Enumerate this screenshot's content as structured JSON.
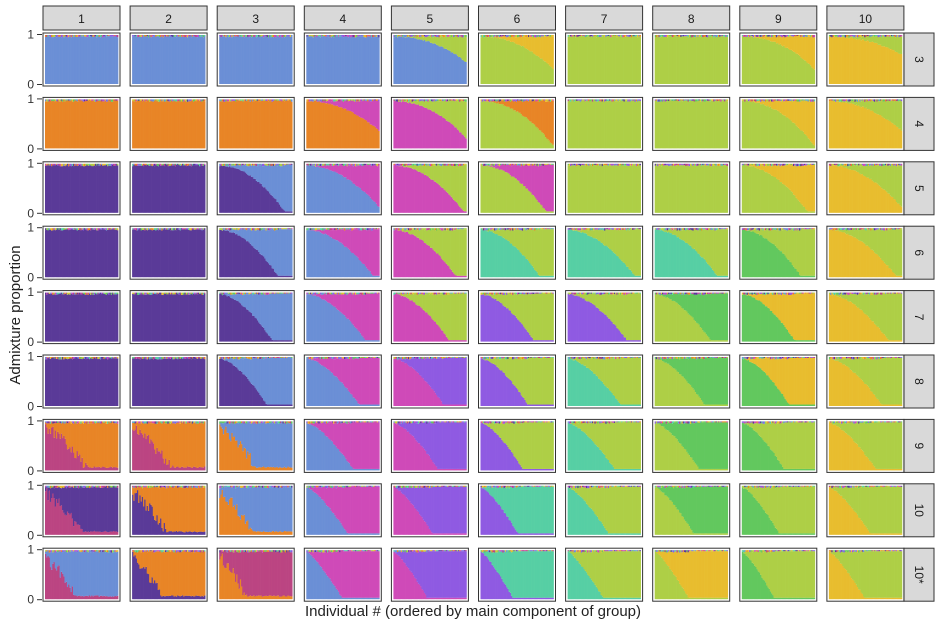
{
  "chart_data": {
    "type": "bar",
    "subtype": "stacked-admixture-facet-grid",
    "xlabel": "Individual # (ordered by main component of group)",
    "ylabel": "Admixture proportion",
    "yticks": [
      "0",
      "1"
    ],
    "ylim": [
      0,
      1
    ],
    "columns": [
      "1",
      "2",
      "3",
      "4",
      "5",
      "6",
      "7",
      "8",
      "9",
      "10"
    ],
    "rows": [
      "3",
      "4",
      "5",
      "6",
      "7",
      "8",
      "9",
      "10",
      "10*"
    ],
    "palette": {
      "blue": "#6b8fd6",
      "green": "#aecf46",
      "yellow": "#e8bd2f",
      "orange": "#e88526",
      "magenta": "#cf4ab8",
      "purple": "#5a3a98",
      "teal": "#57cfa4",
      "lime": "#62c85e",
      "violet": "#8f5ae2",
      "rose": "#bb4582"
    },
    "panels": [
      {
        "row": "3",
        "main": [
          "blue",
          "blue",
          "blue",
          "blue",
          "blue",
          "green",
          "green",
          "green",
          "green",
          "yellow"
        ],
        "minor": [
          null,
          null,
          null,
          null,
          "green",
          "yellow",
          null,
          null,
          "yellow",
          "green"
        ]
      },
      {
        "row": "4",
        "main": [
          "orange",
          "orange",
          "orange",
          "orange",
          "magenta",
          "green",
          "green",
          "green",
          "green",
          "yellow"
        ],
        "minor": [
          null,
          null,
          null,
          "magenta",
          "green",
          "orange",
          null,
          null,
          "yellow",
          "green"
        ]
      },
      {
        "row": "5",
        "main": [
          "purple",
          "purple",
          "purple",
          "blue",
          "magenta",
          "green",
          "green",
          "green",
          "green",
          "yellow"
        ],
        "minor": [
          null,
          null,
          "blue",
          "magenta",
          "green",
          "magenta",
          null,
          null,
          "yellow",
          "green"
        ]
      },
      {
        "row": "6",
        "main": [
          "purple",
          "purple",
          "purple",
          "blue",
          "magenta",
          "teal",
          "teal",
          "teal",
          "lime",
          "yellow"
        ],
        "minor": [
          null,
          null,
          "blue",
          "magenta",
          "green",
          "green",
          "green",
          "green",
          "green",
          "green"
        ]
      },
      {
        "row": "7",
        "main": [
          "purple",
          "purple",
          "purple",
          "blue",
          "magenta",
          "violet",
          "violet",
          "green",
          "lime",
          "yellow"
        ],
        "minor": [
          null,
          null,
          "blue",
          "magenta",
          "green",
          "green",
          "green",
          "lime",
          "yellow",
          "green"
        ]
      },
      {
        "row": "8",
        "main": [
          "purple",
          "purple",
          "purple",
          "blue",
          "magenta",
          "violet",
          "teal",
          "green",
          "lime",
          "yellow"
        ],
        "minor": [
          null,
          null,
          "blue",
          "magenta",
          "violet",
          "green",
          "green",
          "lime",
          "yellow",
          "green"
        ]
      },
      {
        "row": "9",
        "main": [
          "rose",
          "rose",
          "orange",
          "blue",
          "magenta",
          "violet",
          "teal",
          "green",
          "lime",
          "yellow"
        ],
        "minor": [
          "orange",
          "orange",
          "blue",
          "magenta",
          "violet",
          "green",
          "green",
          "lime",
          "green",
          "green"
        ]
      },
      {
        "row": "10",
        "main": [
          "rose",
          "purple",
          "orange",
          "blue",
          "magenta",
          "violet",
          "teal",
          "green",
          "lime",
          "yellow"
        ],
        "minor": [
          "purple",
          "orange",
          "blue",
          "magenta",
          "violet",
          "teal",
          "green",
          "lime",
          "green",
          "green"
        ]
      },
      {
        "row": "10*",
        "main": [
          "rose",
          "purple",
          "orange",
          "blue",
          "magenta",
          "violet",
          "teal",
          "green",
          "lime",
          "yellow"
        ],
        "minor": [
          "blue",
          "orange",
          "rose",
          "magenta",
          "violet",
          "teal",
          "green",
          "yellow",
          "green",
          "green"
        ]
      }
    ]
  }
}
